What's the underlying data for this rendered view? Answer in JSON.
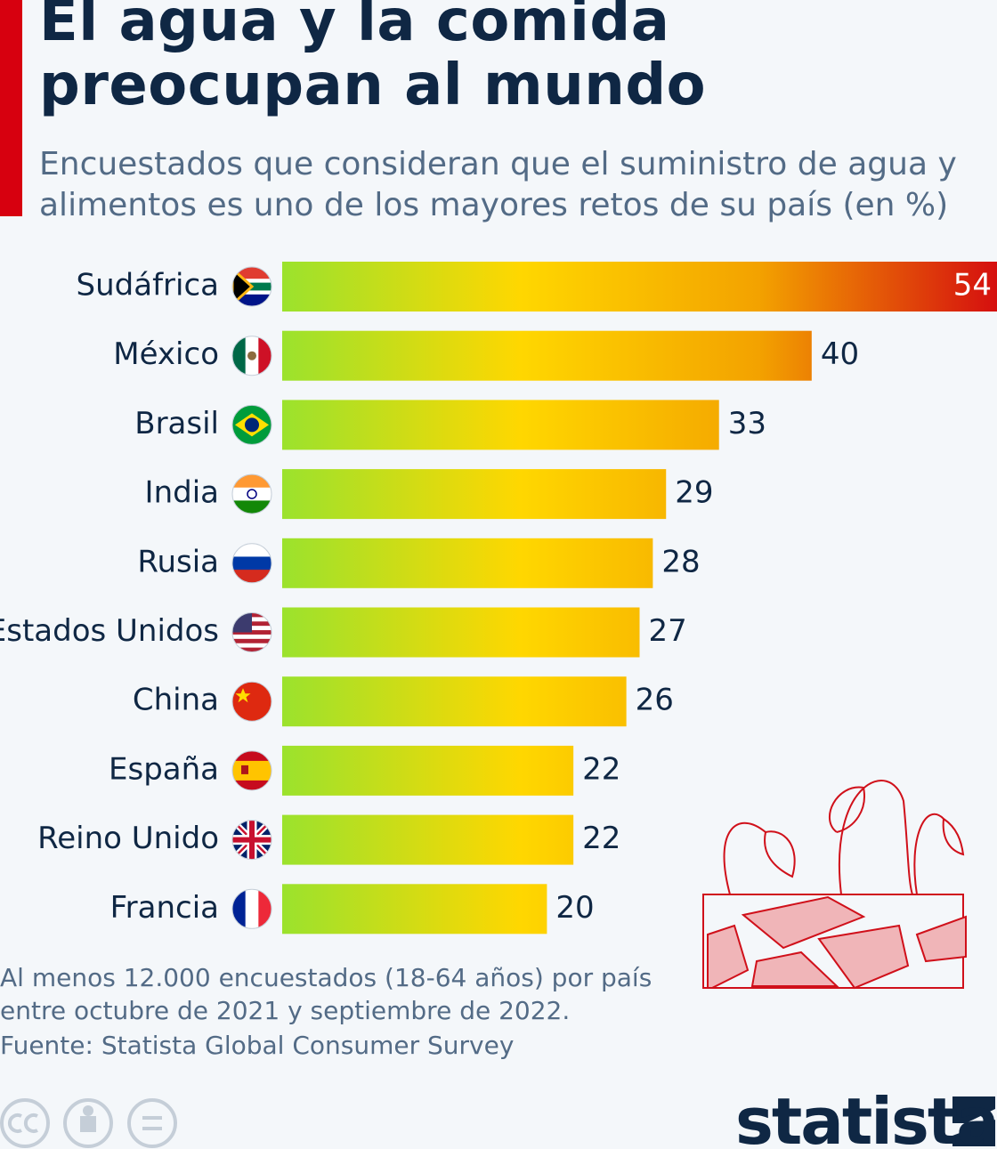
{
  "title": "El agua y la comida preocupan al mundo",
  "subtitle": "Encuestados que consideran que el suministro de agua y alimentos es uno de los mayores retos de su país (en %)",
  "chart_data": {
    "type": "bar",
    "orientation": "horizontal",
    "categories": [
      "Sudáfrica",
      "México",
      "Brasil",
      "India",
      "Rusia",
      "Estados Unidos",
      "China",
      "España",
      "Reino Unido",
      "Francia"
    ],
    "values": [
      54,
      40,
      33,
      29,
      28,
      27,
      26,
      22,
      22,
      20
    ],
    "colors": [
      "#9be22d",
      "#ffd700",
      "#f3a200",
      "#d50f0f"
    ]
  },
  "note": "Al menos 12.000 encuestados (18-64 años) por país entre octubre de 2021 y septiembre de 2022.",
  "source": "Fuente: Statista Global Consumer Survey",
  "logo": "statista"
}
